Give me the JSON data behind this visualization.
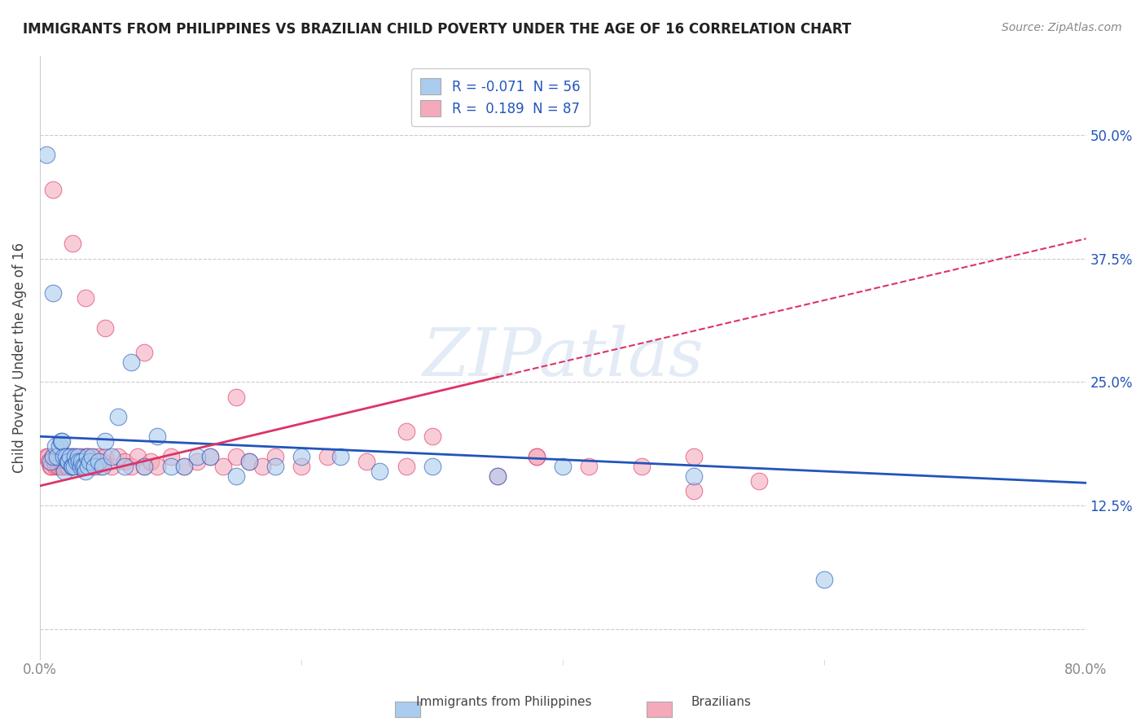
{
  "title": "IMMIGRANTS FROM PHILIPPINES VS BRAZILIAN CHILD POVERTY UNDER THE AGE OF 16 CORRELATION CHART",
  "source": "Source: ZipAtlas.com",
  "ylabel": "Child Poverty Under the Age of 16",
  "xlim": [
    0.0,
    0.8
  ],
  "ylim": [
    -0.03,
    0.58
  ],
  "yticks": [
    0.0,
    0.125,
    0.25,
    0.375,
    0.5
  ],
  "ytick_labels": [
    "",
    "12.5%",
    "25.0%",
    "37.5%",
    "50.0%"
  ],
  "xticks": [
    0.0,
    0.8
  ],
  "xtick_labels": [
    "0.0%",
    "80.0%"
  ],
  "legend_r1_black": "R = ",
  "legend_r1_blue": "-0.071",
  "legend_r1_black2": "  N = ",
  "legend_r1_blue2": "56",
  "legend_r2_black": "R =  ",
  "legend_r2_blue": "0.189",
  "legend_r2_black2": "  N = ",
  "legend_r2_blue2": "87",
  "color_blue": "#aaccee",
  "color_pink": "#f4aabb",
  "line_color_blue": "#2255bb",
  "line_color_pink": "#dd3366",
  "watermark": "ZIPatlas",
  "blue_line_x0": 0.0,
  "blue_line_y0": 0.195,
  "blue_line_x1": 0.8,
  "blue_line_y1": 0.148,
  "pink_line_solid_x0": 0.0,
  "pink_line_solid_y0": 0.145,
  "pink_line_solid_x1": 0.35,
  "pink_line_solid_y1": 0.255,
  "pink_line_dash_x0": 0.35,
  "pink_line_dash_y0": 0.255,
  "pink_line_dash_x1": 0.8,
  "pink_line_dash_y1": 0.395,
  "blue_x": [
    0.005,
    0.008,
    0.01,
    0.01,
    0.012,
    0.013,
    0.015,
    0.016,
    0.017,
    0.018,
    0.019,
    0.02,
    0.021,
    0.022,
    0.023,
    0.024,
    0.025,
    0.026,
    0.027,
    0.028,
    0.029,
    0.03,
    0.031,
    0.032,
    0.033,
    0.034,
    0.035,
    0.036,
    0.037,
    0.038,
    0.04,
    0.042,
    0.045,
    0.048,
    0.05,
    0.055,
    0.06,
    0.065,
    0.07,
    0.08,
    0.09,
    0.1,
    0.11,
    0.12,
    0.13,
    0.15,
    0.16,
    0.18,
    0.2,
    0.23,
    0.26,
    0.3,
    0.35,
    0.4,
    0.5,
    0.6
  ],
  "blue_y": [
    0.48,
    0.17,
    0.175,
    0.34,
    0.185,
    0.175,
    0.185,
    0.19,
    0.19,
    0.175,
    0.16,
    0.175,
    0.17,
    0.17,
    0.175,
    0.165,
    0.165,
    0.165,
    0.175,
    0.17,
    0.175,
    0.17,
    0.165,
    0.17,
    0.165,
    0.165,
    0.16,
    0.175,
    0.165,
    0.17,
    0.175,
    0.165,
    0.17,
    0.165,
    0.19,
    0.175,
    0.215,
    0.165,
    0.27,
    0.165,
    0.195,
    0.165,
    0.165,
    0.175,
    0.175,
    0.155,
    0.17,
    0.165,
    0.175,
    0.175,
    0.16,
    0.165,
    0.155,
    0.165,
    0.155,
    0.05
  ],
  "pink_x": [
    0.005,
    0.006,
    0.007,
    0.008,
    0.009,
    0.01,
    0.011,
    0.012,
    0.012,
    0.013,
    0.014,
    0.015,
    0.015,
    0.016,
    0.017,
    0.017,
    0.018,
    0.018,
    0.019,
    0.019,
    0.02,
    0.02,
    0.021,
    0.021,
    0.022,
    0.022,
    0.023,
    0.024,
    0.025,
    0.025,
    0.026,
    0.027,
    0.028,
    0.029,
    0.03,
    0.031,
    0.032,
    0.033,
    0.034,
    0.035,
    0.036,
    0.037,
    0.038,
    0.039,
    0.04,
    0.042,
    0.044,
    0.046,
    0.048,
    0.05,
    0.055,
    0.06,
    0.065,
    0.07,
    0.075,
    0.08,
    0.085,
    0.09,
    0.1,
    0.11,
    0.12,
    0.13,
    0.14,
    0.15,
    0.16,
    0.17,
    0.18,
    0.2,
    0.22,
    0.25,
    0.28,
    0.3,
    0.35,
    0.38,
    0.42,
    0.46,
    0.5,
    0.55,
    0.01,
    0.025,
    0.035,
    0.05,
    0.08,
    0.15,
    0.28,
    0.38,
    0.5
  ],
  "pink_y": [
    0.175,
    0.175,
    0.17,
    0.165,
    0.165,
    0.175,
    0.17,
    0.175,
    0.165,
    0.17,
    0.165,
    0.175,
    0.165,
    0.17,
    0.165,
    0.175,
    0.165,
    0.175,
    0.17,
    0.175,
    0.165,
    0.175,
    0.17,
    0.165,
    0.165,
    0.175,
    0.17,
    0.175,
    0.165,
    0.175,
    0.17,
    0.175,
    0.17,
    0.165,
    0.165,
    0.175,
    0.17,
    0.165,
    0.175,
    0.165,
    0.175,
    0.175,
    0.17,
    0.165,
    0.175,
    0.17,
    0.175,
    0.165,
    0.17,
    0.175,
    0.165,
    0.175,
    0.17,
    0.165,
    0.175,
    0.165,
    0.17,
    0.165,
    0.175,
    0.165,
    0.17,
    0.175,
    0.165,
    0.175,
    0.17,
    0.165,
    0.175,
    0.165,
    0.175,
    0.17,
    0.165,
    0.195,
    0.155,
    0.175,
    0.165,
    0.165,
    0.175,
    0.15,
    0.445,
    0.39,
    0.335,
    0.305,
    0.28,
    0.235,
    0.2,
    0.175,
    0.14
  ]
}
